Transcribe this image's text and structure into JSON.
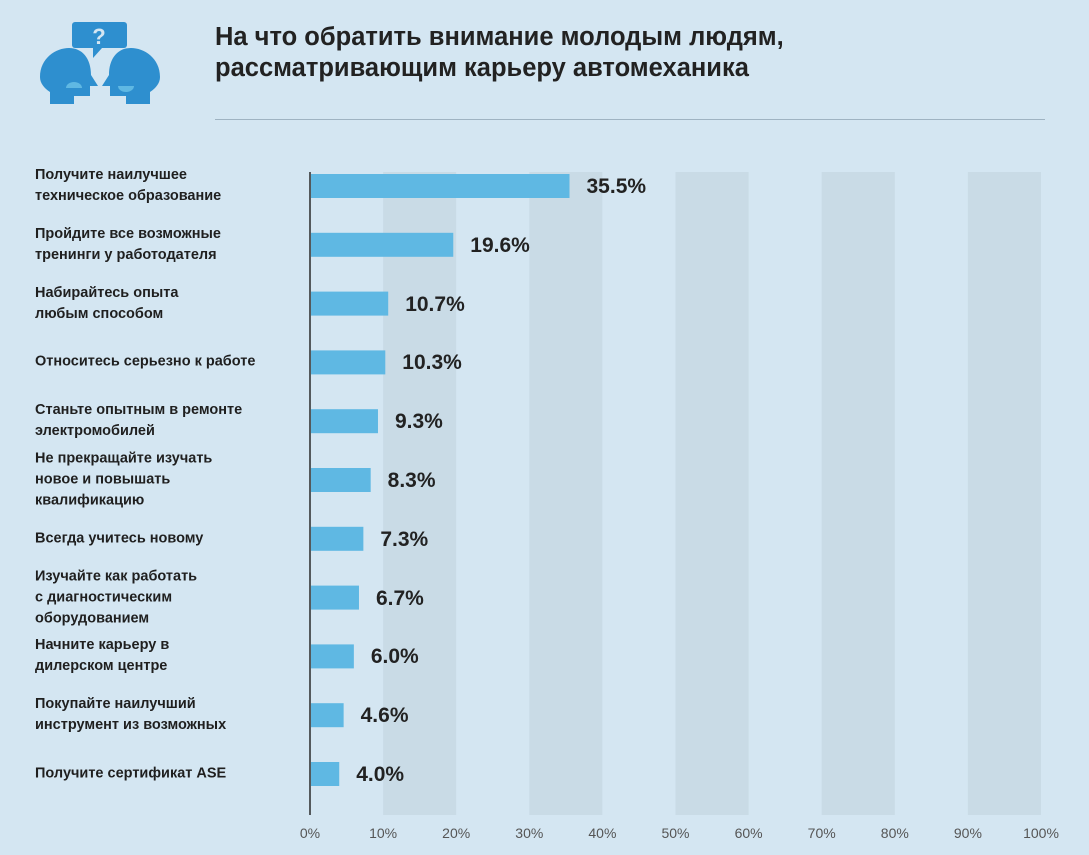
{
  "header": {
    "title_line1": "На что обратить внимание молодым людям,",
    "title_line2": "рассматривающим карьеру автомеханика",
    "icon": "two-heads-question-icon"
  },
  "colors": {
    "background": "#d4e6f2",
    "stripe": "#c9dbe6",
    "bar": "#5fb8e3",
    "text": "#1f1f1f"
  },
  "chart_data": {
    "type": "bar",
    "orientation": "horizontal",
    "title": "На что обратить внимание молодым людям, рассматривающим карьеру автомеханика",
    "categories": [
      [
        "Получите наилучшее",
        "техническое образование"
      ],
      [
        "Пройдите все возможные",
        "тренинги у работодателя"
      ],
      [
        "Набирайтесь опыта",
        "любым способом"
      ],
      [
        "Относитесь серьезно к работе"
      ],
      [
        "Станьте опытным в ремонте",
        "электромобилей"
      ],
      [
        "Не прекращайте изучать",
        "новое и повышать",
        "квалификацию"
      ],
      [
        "Всегда учитесь новому"
      ],
      [
        "Изучайте как работать",
        "с диагностическим",
        "оборудованием"
      ],
      [
        "Начните карьеру в",
        "дилерском центре"
      ],
      [
        "Покупайте наилучший",
        "инструмент из возможных"
      ],
      [
        "Получите сертификат ASE"
      ]
    ],
    "values": [
      35.5,
      19.6,
      10.7,
      10.3,
      9.3,
      8.3,
      7.3,
      6.7,
      6.0,
      4.6,
      4.0
    ],
    "value_labels": [
      "35.5%",
      "19.6%",
      "10.7%",
      "10.3%",
      "9.3%",
      "8.3%",
      "7.3%",
      "6.7%",
      "6.0%",
      "4.6%",
      "4.0%"
    ],
    "xlim": [
      0,
      100
    ],
    "xticks": [
      "0%",
      "10%",
      "20%",
      "30%",
      "40%",
      "50%",
      "60%",
      "70%",
      "80%",
      "90%",
      "100%"
    ],
    "xlabel": "",
    "ylabel": "",
    "grid": "alternating vertical bands"
  }
}
